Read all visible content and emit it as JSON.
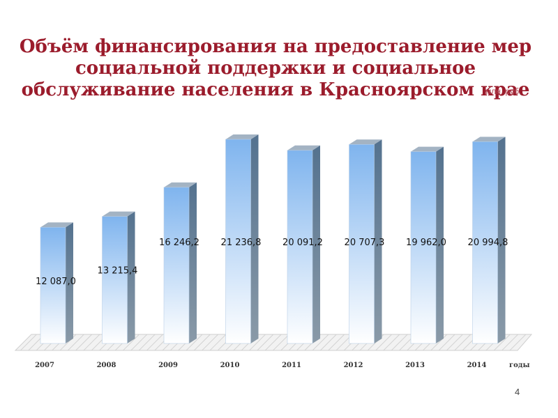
{
  "slide": {
    "title_lines": [
      "Объём финансирования на предоставление мер",
      "социальной поддержки и социальное",
      "обслуживание населения в Красноярском крае"
    ],
    "unit": "млн. руб.",
    "page_number": "4"
  },
  "chart_data": {
    "type": "bar",
    "title": "Объём финансирования на предоставление мер социальной поддержки и социальное обслуживание населения в Красноярском крае",
    "categories": [
      "2007",
      "2008",
      "2009",
      "2010",
      "2011",
      "2012",
      "2013",
      "2014"
    ],
    "values": [
      12087.0,
      13215.4,
      16246.2,
      21236.8,
      20091.2,
      20707.3,
      19962.0,
      20994.8
    ],
    "data_labels": [
      "12 087,0",
      "13 215,4",
      "16 246,2",
      "21 236,8",
      "20 091,2",
      "20 707,3",
      "19 962,0",
      "20 994,8"
    ],
    "xlabel": "годы",
    "ylabel": "млн. руб.",
    "ylim": [
      0,
      21500
    ],
    "grid": false,
    "legend": "none",
    "colors": {
      "bar_top": "#7fb4ee",
      "bar_bottom": "#ffffff",
      "bar_side": "#5f7f9f",
      "bar_cap": "#a3b3c3",
      "title": "#9b1c2c",
      "floor": "#cfcfcf"
    }
  }
}
